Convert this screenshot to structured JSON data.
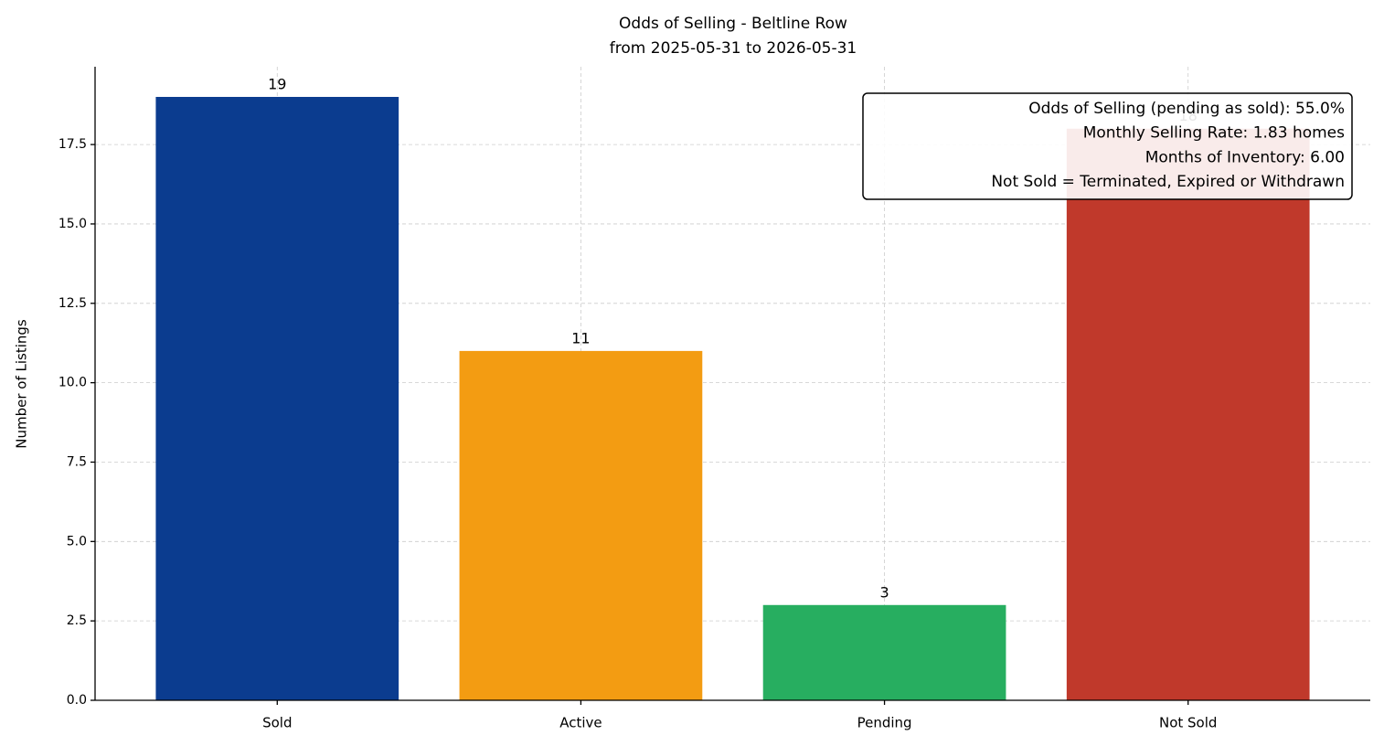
{
  "chart_data": {
    "type": "bar",
    "title": "Odds of Selling - Beltline Row",
    "subtitle": "from 2025-05-31 to 2026-05-31",
    "y_label": "Number of Listings",
    "categories": [
      "Sold",
      "Active",
      "Pending",
      "Not Sold"
    ],
    "values": [
      19,
      11,
      3,
      18
    ],
    "colors": [
      "#0b3c8f",
      "#f39c12",
      "#27ae60",
      "#c0392b"
    ],
    "ylim": [
      0,
      19.95
    ],
    "yticks": [
      {
        "value": 0,
        "label": "0.0"
      },
      {
        "value": 2.5,
        "label": "2.5"
      },
      {
        "value": 5,
        "label": "5.0"
      },
      {
        "value": 7.5,
        "label": "7.5"
      },
      {
        "value": 10,
        "label": "10.0"
      },
      {
        "value": 12.5,
        "label": "12.5"
      },
      {
        "value": 15,
        "label": "15.0"
      },
      {
        "value": 17.5,
        "label": "17.5"
      }
    ],
    "grid": true,
    "annotations": [
      "Odds of Selling (pending as sold): 55.0%",
      "Monthly Selling Rate: 1.83 homes",
      "Months of Inventory: 6.00",
      "Not Sold = Terminated, Expired or Withdrawn"
    ]
  }
}
